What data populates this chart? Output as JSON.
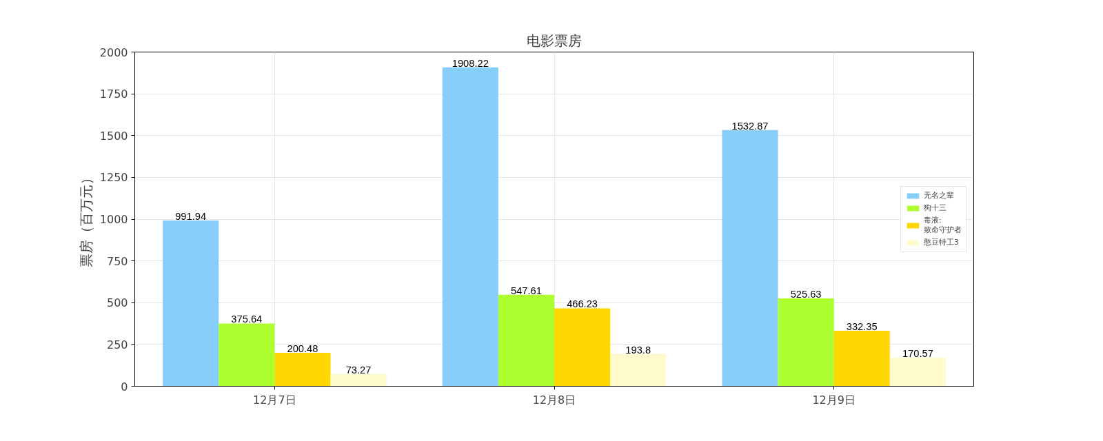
{
  "chart_data": {
    "type": "bar",
    "title": "电影票房",
    "ylabel": "票房（百万元）",
    "categories": [
      "12月7日",
      "12月8日",
      "12月9日"
    ],
    "series": [
      {
        "name": "无名之辈",
        "color": "#87cefa",
        "values": [
          991.94,
          1908.22,
          1532.87
        ]
      },
      {
        "name": "狗十三",
        "color": "#adff2f",
        "values": [
          375.64,
          547.61,
          525.63
        ]
      },
      {
        "name": "毒液:\n致命守护者",
        "color": "#ffd700",
        "values": [
          200.48,
          466.23,
          332.35
        ]
      },
      {
        "name": "憨豆特工3",
        "color": "#fffacd",
        "values": [
          73.27,
          193.8,
          170.57
        ]
      }
    ],
    "ylim": [
      0,
      2000
    ],
    "yticks": [
      0,
      250,
      500,
      750,
      1000,
      1250,
      1500,
      1750,
      2000
    ],
    "grid": true,
    "legend": "right",
    "data_labels": true
  }
}
